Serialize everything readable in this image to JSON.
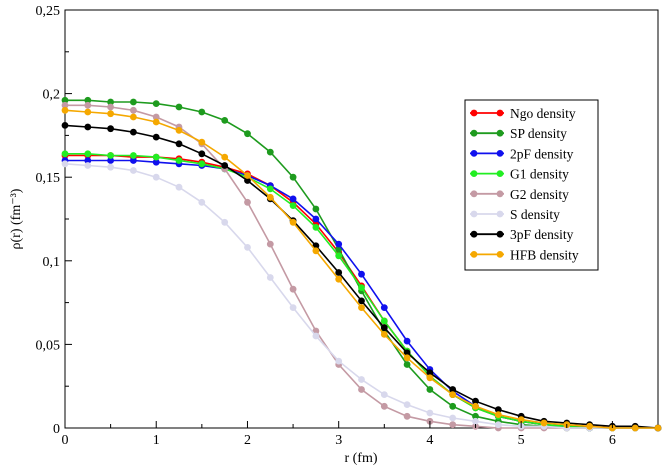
{
  "chart_data": {
    "type": "line",
    "title": "",
    "xlabel": "r (fm)",
    "ylabel": "ρ(r) (fm⁻³)",
    "xlim": [
      0,
      6.5
    ],
    "ylim": [
      0,
      0.25
    ],
    "x_ticks": [
      {
        "value": 0,
        "label": "0"
      },
      {
        "value": 1,
        "label": "1"
      },
      {
        "value": 2,
        "label": "2"
      },
      {
        "value": 3,
        "label": "3"
      },
      {
        "value": 4,
        "label": "4"
      },
      {
        "value": 5,
        "label": "5"
      },
      {
        "value": 6,
        "label": "6"
      }
    ],
    "y_ticks": [
      {
        "value": 0,
        "label": "0"
      },
      {
        "value": 0.05,
        "label": "0,05"
      },
      {
        "value": 0.1,
        "label": "0,1"
      },
      {
        "value": 0.15,
        "label": "0,15"
      },
      {
        "value": 0.2,
        "label": "0,2"
      },
      {
        "value": 0.25,
        "label": "0,25"
      }
    ],
    "legend_position": "right",
    "x": [
      0.0,
      0.25,
      0.5,
      0.75,
      1.0,
      1.25,
      1.5,
      1.75,
      2.0,
      2.25,
      2.5,
      2.75,
      3.0,
      3.25,
      3.5,
      3.75,
      4.0,
      4.25,
      4.5,
      4.75,
      5.0,
      5.25,
      5.5,
      5.75,
      6.0,
      6.25,
      6.5
    ],
    "series": [
      {
        "name": "Ngo density",
        "color": "#ff0000",
        "values": [
          0.163,
          0.163,
          0.163,
          0.162,
          0.162,
          0.161,
          0.159,
          0.156,
          0.152,
          0.145,
          0.135,
          0.122,
          0.105,
          0.085,
          0.064,
          0.046,
          0.031,
          0.02,
          0.012,
          0.007,
          0.004,
          0.002,
          0.001,
          0.001,
          0.0,
          0.0,
          0.0
        ]
      },
      {
        "name": "SP density",
        "color": "#1e9b1e",
        "values": [
          0.196,
          0.196,
          0.195,
          0.195,
          0.194,
          0.192,
          0.189,
          0.184,
          0.176,
          0.165,
          0.15,
          0.131,
          0.107,
          0.082,
          0.058,
          0.038,
          0.023,
          0.013,
          0.007,
          0.004,
          0.002,
          0.001,
          0.0,
          0.0,
          0.0,
          0.0,
          0.0
        ]
      },
      {
        "name": "2pF density",
        "color": "#1010ee",
        "values": [
          0.16,
          0.16,
          0.16,
          0.16,
          0.159,
          0.158,
          0.157,
          0.155,
          0.151,
          0.145,
          0.137,
          0.125,
          0.11,
          0.092,
          0.072,
          0.052,
          0.035,
          0.022,
          0.013,
          0.007,
          0.004,
          0.002,
          0.001,
          0.0,
          0.0,
          0.0,
          0.0
        ]
      },
      {
        "name": "G1 density",
        "color": "#22ee22",
        "values": [
          0.164,
          0.164,
          0.163,
          0.163,
          0.162,
          0.16,
          0.158,
          0.155,
          0.15,
          0.143,
          0.133,
          0.12,
          0.103,
          0.084,
          0.064,
          0.046,
          0.031,
          0.02,
          0.012,
          0.007,
          0.004,
          0.002,
          0.001,
          0.0,
          0.0,
          0.0,
          0.0
        ]
      },
      {
        "name": "G2 density",
        "color": "#c49aa4",
        "values": [
          0.193,
          0.193,
          0.192,
          0.19,
          0.186,
          0.18,
          0.17,
          0.155,
          0.135,
          0.11,
          0.083,
          0.058,
          0.038,
          0.023,
          0.013,
          0.007,
          0.004,
          0.002,
          0.001,
          0.0,
          0.0,
          0.0,
          0.0,
          0.0,
          0.0,
          0.0,
          0.0
        ]
      },
      {
        "name": "S density",
        "color": "#d8d8ec",
        "values": [
          0.158,
          0.157,
          0.156,
          0.154,
          0.15,
          0.144,
          0.135,
          0.123,
          0.108,
          0.09,
          0.072,
          0.055,
          0.04,
          0.029,
          0.02,
          0.014,
          0.009,
          0.006,
          0.004,
          0.002,
          0.001,
          0.001,
          0.0,
          0.0,
          0.0,
          0.0,
          0.0
        ]
      },
      {
        "name": "3pF density",
        "color": "#000000",
        "values": [
          0.181,
          0.18,
          0.179,
          0.177,
          0.174,
          0.17,
          0.164,
          0.157,
          0.148,
          0.137,
          0.124,
          0.109,
          0.093,
          0.076,
          0.06,
          0.045,
          0.033,
          0.023,
          0.016,
          0.011,
          0.007,
          0.004,
          0.003,
          0.002,
          0.001,
          0.001,
          0.0
        ]
      },
      {
        "name": "HFB density",
        "color": "#f5a800",
        "values": [
          0.19,
          0.189,
          0.188,
          0.186,
          0.183,
          0.178,
          0.171,
          0.162,
          0.151,
          0.138,
          0.123,
          0.106,
          0.089,
          0.072,
          0.056,
          0.042,
          0.03,
          0.02,
          0.013,
          0.008,
          0.005,
          0.003,
          0.002,
          0.001,
          0.0,
          0.0,
          0.0
        ]
      }
    ]
  }
}
